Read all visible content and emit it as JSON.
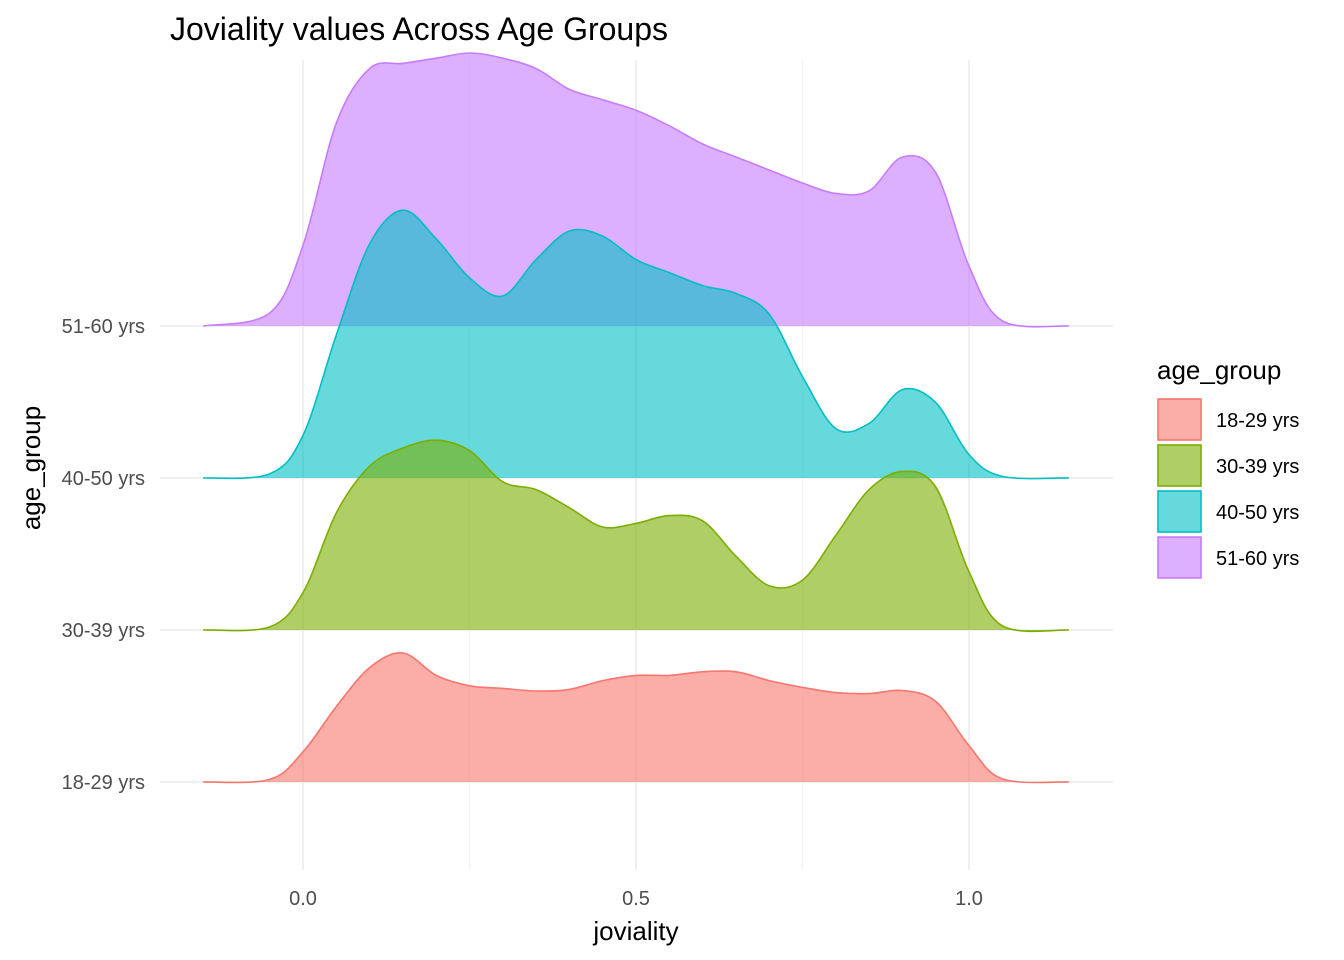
{
  "chart_data": {
    "type": "area",
    "subtype": "ridgeline-density",
    "title": "Joviality values Across Age Groups",
    "xlabel": "joviality",
    "ylabel": "age_group",
    "xlim": [
      -0.15,
      1.15
    ],
    "x_ticks": [
      0.0,
      0.5,
      1.0
    ],
    "x_tick_labels": [
      "0.0",
      "0.5",
      "1.0"
    ],
    "categories": [
      "18-29 yrs",
      "30-39 yrs",
      "40-50 yrs",
      "51-60 yrs"
    ],
    "grid": true,
    "legend": {
      "title": "age_group",
      "position": "right"
    },
    "series": [
      {
        "name": "18-29 yrs",
        "color": "#F8766D",
        "x": [
          -0.15,
          -0.05,
          0.0,
          0.05,
          0.1,
          0.15,
          0.2,
          0.25,
          0.3,
          0.35,
          0.4,
          0.45,
          0.5,
          0.55,
          0.6,
          0.65,
          0.7,
          0.75,
          0.8,
          0.85,
          0.9,
          0.95,
          1.0,
          1.05,
          1.15
        ],
        "density": [
          0.0,
          0.05,
          0.58,
          1.45,
          2.2,
          2.48,
          2.05,
          1.85,
          1.8,
          1.75,
          1.78,
          1.95,
          2.05,
          2.05,
          2.12,
          2.12,
          1.95,
          1.82,
          1.72,
          1.7,
          1.76,
          1.55,
          0.7,
          0.06,
          0.0
        ]
      },
      {
        "name": "30-39 yrs",
        "color": "#7CAE00",
        "x": [
          -0.15,
          -0.05,
          0.0,
          0.05,
          0.1,
          0.15,
          0.2,
          0.25,
          0.3,
          0.35,
          0.4,
          0.45,
          0.5,
          0.55,
          0.6,
          0.65,
          0.7,
          0.75,
          0.8,
          0.85,
          0.9,
          0.95,
          1.0,
          1.05,
          1.15
        ],
        "density": [
          0.0,
          0.06,
          0.72,
          2.25,
          3.15,
          3.5,
          3.65,
          3.45,
          2.85,
          2.7,
          2.35,
          1.98,
          2.05,
          2.2,
          2.1,
          1.42,
          0.85,
          0.96,
          1.82,
          2.7,
          3.05,
          2.75,
          1.12,
          0.08,
          0.0
        ]
      },
      {
        "name": "40-50 yrs",
        "color": "#00BFC4",
        "x": [
          -0.15,
          -0.05,
          0.0,
          0.05,
          0.1,
          0.15,
          0.2,
          0.25,
          0.3,
          0.35,
          0.4,
          0.45,
          0.5,
          0.55,
          0.6,
          0.65,
          0.7,
          0.75,
          0.8,
          0.85,
          0.9,
          0.95,
          1.0,
          1.05,
          1.15
        ],
        "density": [
          0.0,
          0.08,
          0.82,
          2.75,
          4.5,
          5.15,
          4.6,
          3.85,
          3.5,
          4.2,
          4.75,
          4.65,
          4.2,
          3.95,
          3.7,
          3.55,
          3.15,
          1.95,
          0.95,
          1.05,
          1.7,
          1.45,
          0.45,
          0.03,
          0.0
        ]
      },
      {
        "name": "51-60 yrs",
        "color": "#C77CFF",
        "x": [
          -0.15,
          -0.05,
          0.0,
          0.05,
          0.1,
          0.15,
          0.2,
          0.25,
          0.3,
          0.35,
          0.4,
          0.45,
          0.5,
          0.55,
          0.6,
          0.65,
          0.7,
          0.75,
          0.8,
          0.85,
          0.9,
          0.95,
          1.0,
          1.05,
          1.15
        ],
        "density": [
          0.0,
          0.25,
          1.55,
          3.9,
          4.95,
          5.05,
          5.15,
          5.25,
          5.15,
          4.95,
          4.55,
          4.35,
          4.15,
          3.85,
          3.5,
          3.25,
          3.0,
          2.75,
          2.55,
          2.6,
          3.25,
          2.95,
          1.15,
          0.1,
          0.0
        ]
      }
    ]
  }
}
